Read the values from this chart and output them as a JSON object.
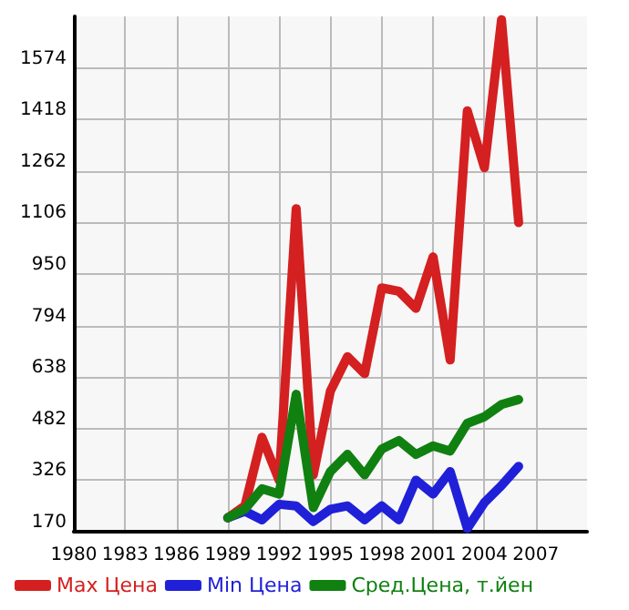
{
  "chart_data": {
    "type": "line",
    "x": [
      1989,
      1990,
      1991,
      1992,
      1993,
      1994,
      1995,
      1996,
      1997,
      1998,
      1999,
      2000,
      2001,
      2002,
      2003,
      2004,
      2005,
      2006
    ],
    "series": [
      {
        "name": "Max Цена",
        "color": "#d42020",
        "values": [
          212,
          248,
          456,
          326,
          1148,
          342,
          596,
          700,
          648,
          908,
          898,
          846,
          1002,
          690,
          1444,
          1272,
          1720,
          1106
        ]
      },
      {
        "name": "Min Цена",
        "color": "#2020d8",
        "values": [
          212,
          232,
          206,
          253,
          248,
          201,
          238,
          248,
          206,
          248,
          206,
          326,
          284,
          352,
          180,
          258,
          310,
          368
        ]
      },
      {
        "name": "Сред.Цена, т.йен",
        "color": "#108010",
        "values": [
          212,
          238,
          300,
          284,
          586,
          243,
          352,
          404,
          342,
          420,
          446,
          404,
          430,
          414,
          498,
          518,
          555,
          570
        ]
      }
    ],
    "xlim": [
      1980,
      2010
    ],
    "xticks": [
      1980,
      1983,
      1986,
      1989,
      1992,
      1995,
      1998,
      2001,
      2004,
      2007
    ],
    "ylim": [
      170,
      1730
    ],
    "yticks": [
      170,
      326,
      482,
      638,
      794,
      950,
      1106,
      1262,
      1418,
      1574
    ],
    "grid": true,
    "legend": "bottom",
    "marker": "none",
    "line_style": "solid"
  }
}
